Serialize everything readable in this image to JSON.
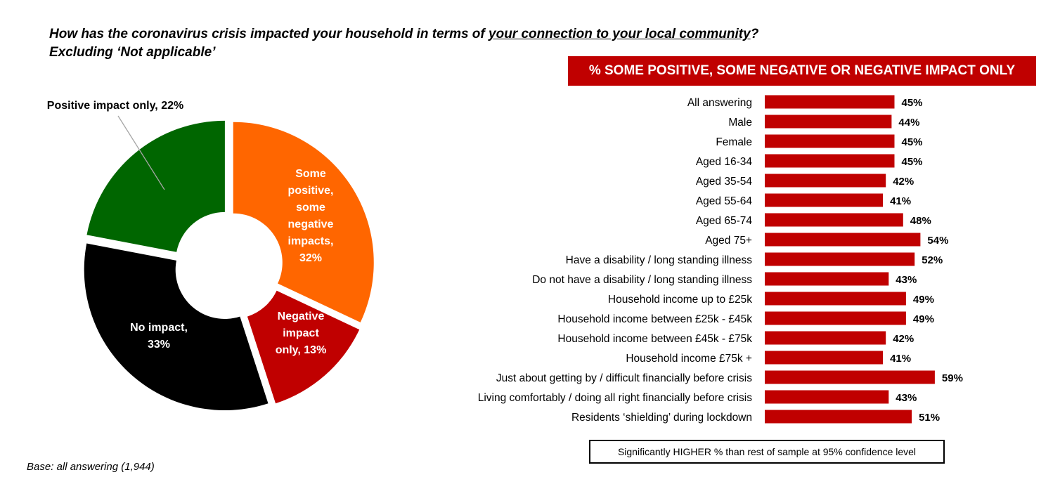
{
  "question": {
    "part1": "How has the coronavirus crisis impacted your household in terms of ",
    "underlined": "your connection to your local community",
    "part2": "?",
    "line2": "Excluding ‘Not applicable’"
  },
  "base_note": "Base: all answering (1,944)",
  "banner": "% SOME POSITIVE,  SOME NEGATIVE OR NEGATIVE IMPACT ONLY",
  "legend_note": "Significantly HIGHER % than rest of sample at 95% confidence level",
  "chart_data": [
    {
      "type": "pie",
      "donut": true,
      "slices": [
        {
          "label": "Some positive, some negative impacts, 32%",
          "value": 32,
          "color": "#ff6600",
          "text_color": "#ffffff"
        },
        {
          "label": "Negative impact only, 13%",
          "value": 13,
          "color": "#c00000",
          "text_color": "#ffffff"
        },
        {
          "label": "No impact, 33%",
          "value": 33,
          "color": "#000000",
          "text_color": "#ffffff"
        },
        {
          "label": "Positive impact only, 22%",
          "value": 22,
          "color": "#006600",
          "text_color": "#000000"
        }
      ]
    },
    {
      "type": "bar",
      "orientation": "horizontal",
      "color": "#c00000",
      "categories": [
        "All answering",
        "Male",
        "Female",
        "Aged 16-34",
        "Aged 35-54",
        "Aged 55-64",
        "Aged 65-74",
        "Aged 75+",
        "Have a disability / long standing illness",
        "Do not have a disability / long standing illness",
        "Household income up to £25k",
        "Household income between £25k - £45k",
        "Household income between £45k - £75k",
        "Household income £75k +",
        "Just about getting by / difficult financially before crisis",
        "Living comfortably / doing all right financially before crisis",
        "Residents ‘shielding’ during lockdown"
      ],
      "values": [
        45,
        44,
        45,
        45,
        42,
        41,
        48,
        54,
        52,
        43,
        49,
        49,
        42,
        41,
        59,
        43,
        51
      ],
      "value_labels": [
        "45%",
        "44%",
        "45%",
        "45%",
        "42%",
        "41%",
        "48%",
        "54%",
        "52%",
        "43%",
        "49%",
        "49%",
        "42%",
        "41%",
        "59%",
        "43%",
        "51%"
      ]
    }
  ]
}
